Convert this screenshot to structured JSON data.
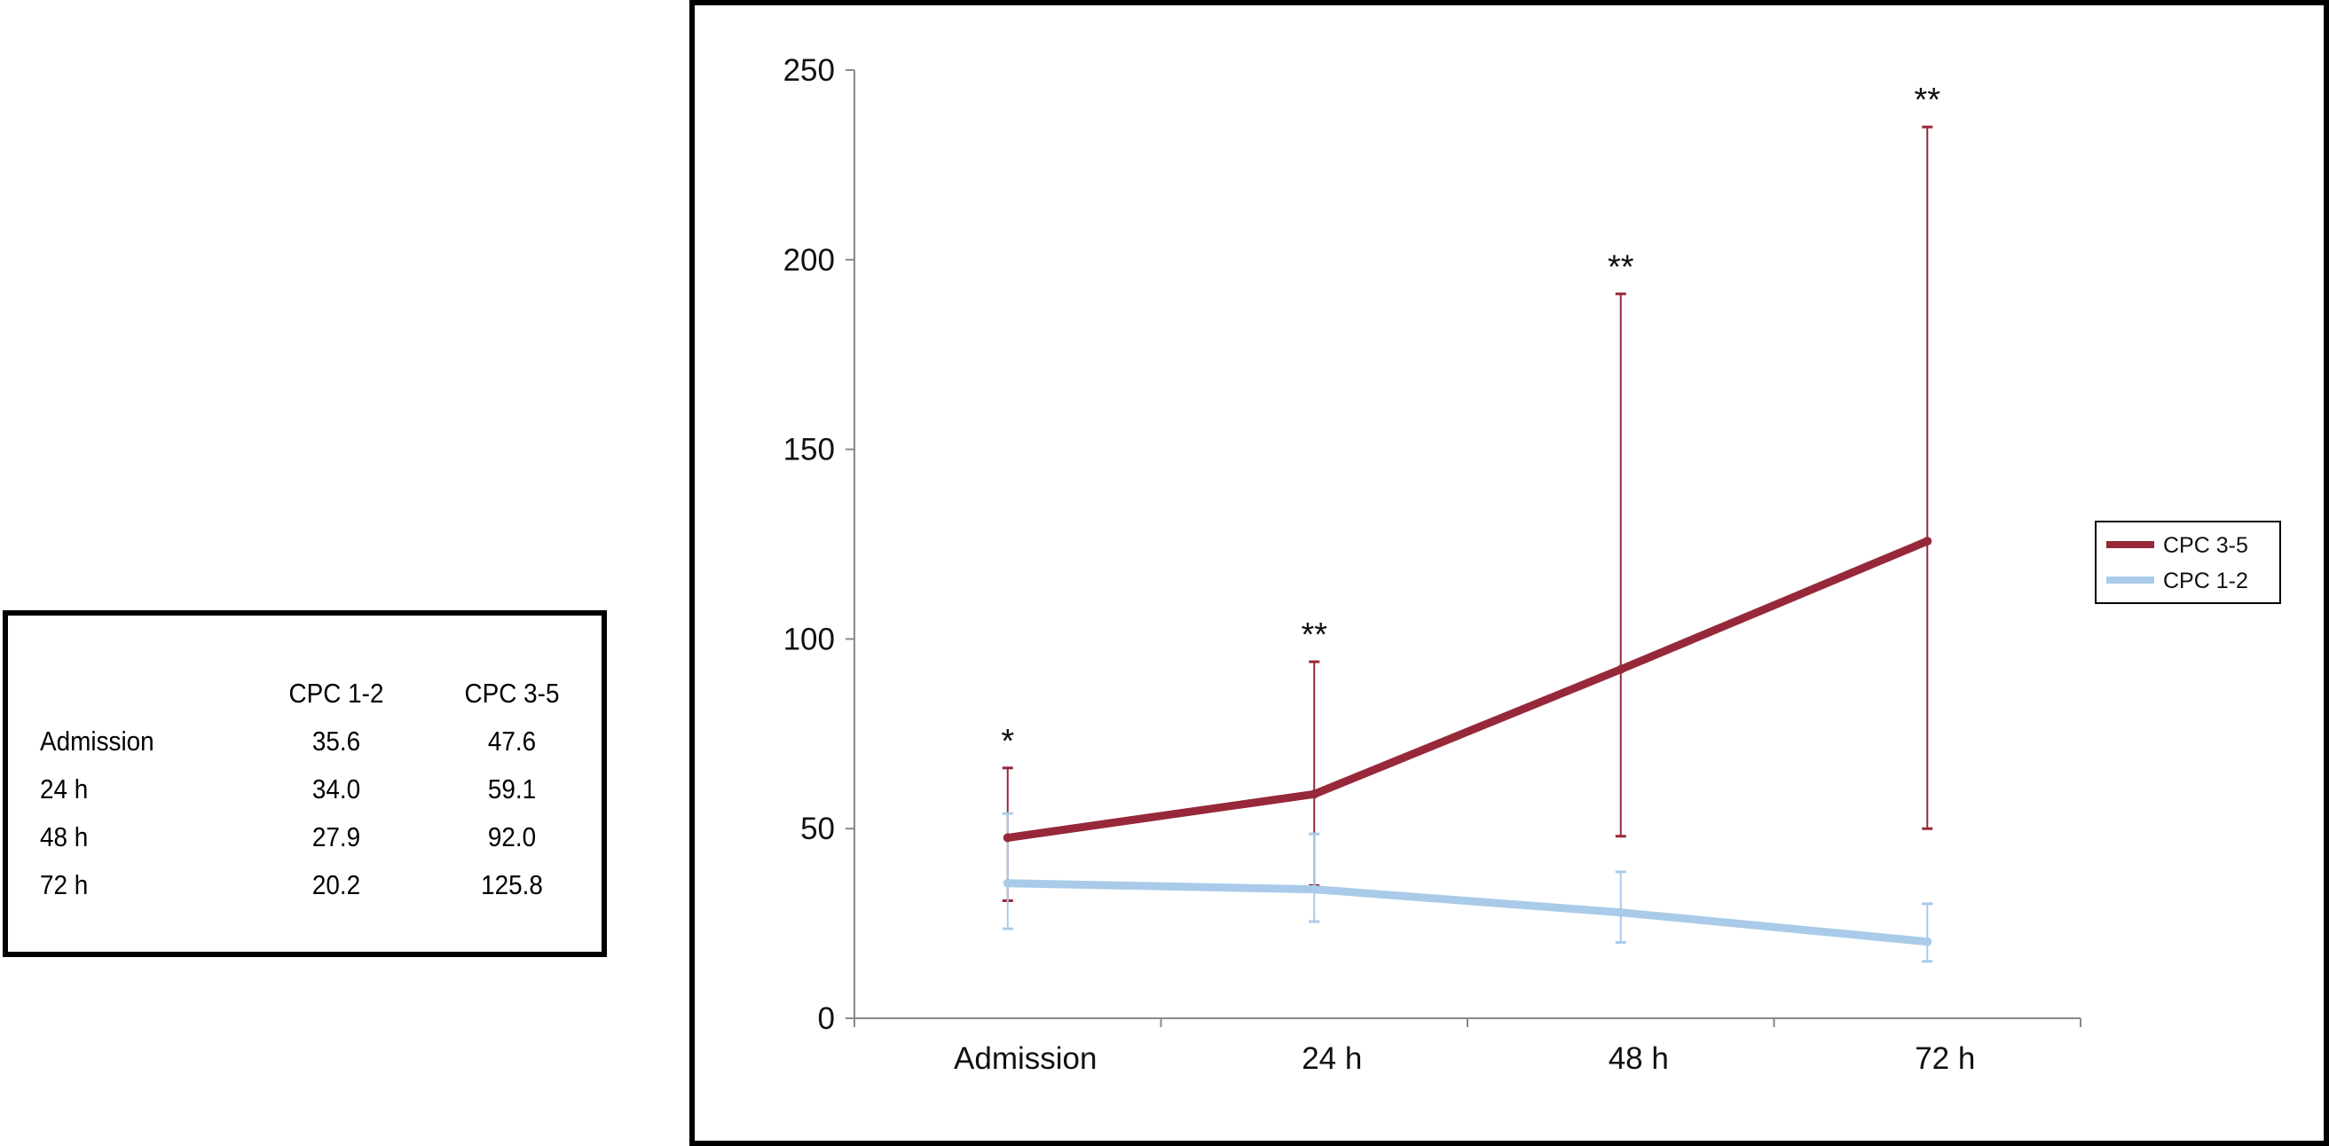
{
  "table": {
    "headers": [
      "",
      "CPC 1-2",
      "CPC 3-5"
    ],
    "rows": [
      [
        "Admission",
        "35.6",
        "47.6"
      ],
      [
        "24 h",
        "34.0",
        "59.1"
      ],
      [
        "48 h",
        "27.9",
        "92.0"
      ],
      [
        "72 h",
        "20.2",
        "125.8"
      ]
    ]
  },
  "chart_data": {
    "type": "line",
    "title": "",
    "xlabel": "",
    "ylabel": "",
    "categories": [
      "Admission",
      "24 h",
      "48 h",
      "72 h"
    ],
    "ylim": [
      0,
      250
    ],
    "yticks": [
      0,
      50,
      100,
      150,
      200,
      250
    ],
    "grid": false,
    "legend_position": "right",
    "series": [
      {
        "name": "CPC 3-5",
        "color": "#97283a",
        "values": [
          47.6,
          59.1,
          92.0,
          125.8
        ],
        "error_low": [
          31,
          35,
          48,
          50
        ],
        "error_high": [
          66,
          94,
          191,
          235
        ]
      },
      {
        "name": "CPC 1-2",
        "color": "#a9cbe9",
        "values": [
          35.6,
          34.0,
          27.9,
          20.2
        ],
        "error_low": [
          23.6,
          25.5,
          20,
          15
        ],
        "error_high": [
          54,
          48.6,
          38.6,
          30.2
        ]
      }
    ],
    "annotations": [
      "*",
      "**",
      "**",
      "**"
    ]
  }
}
